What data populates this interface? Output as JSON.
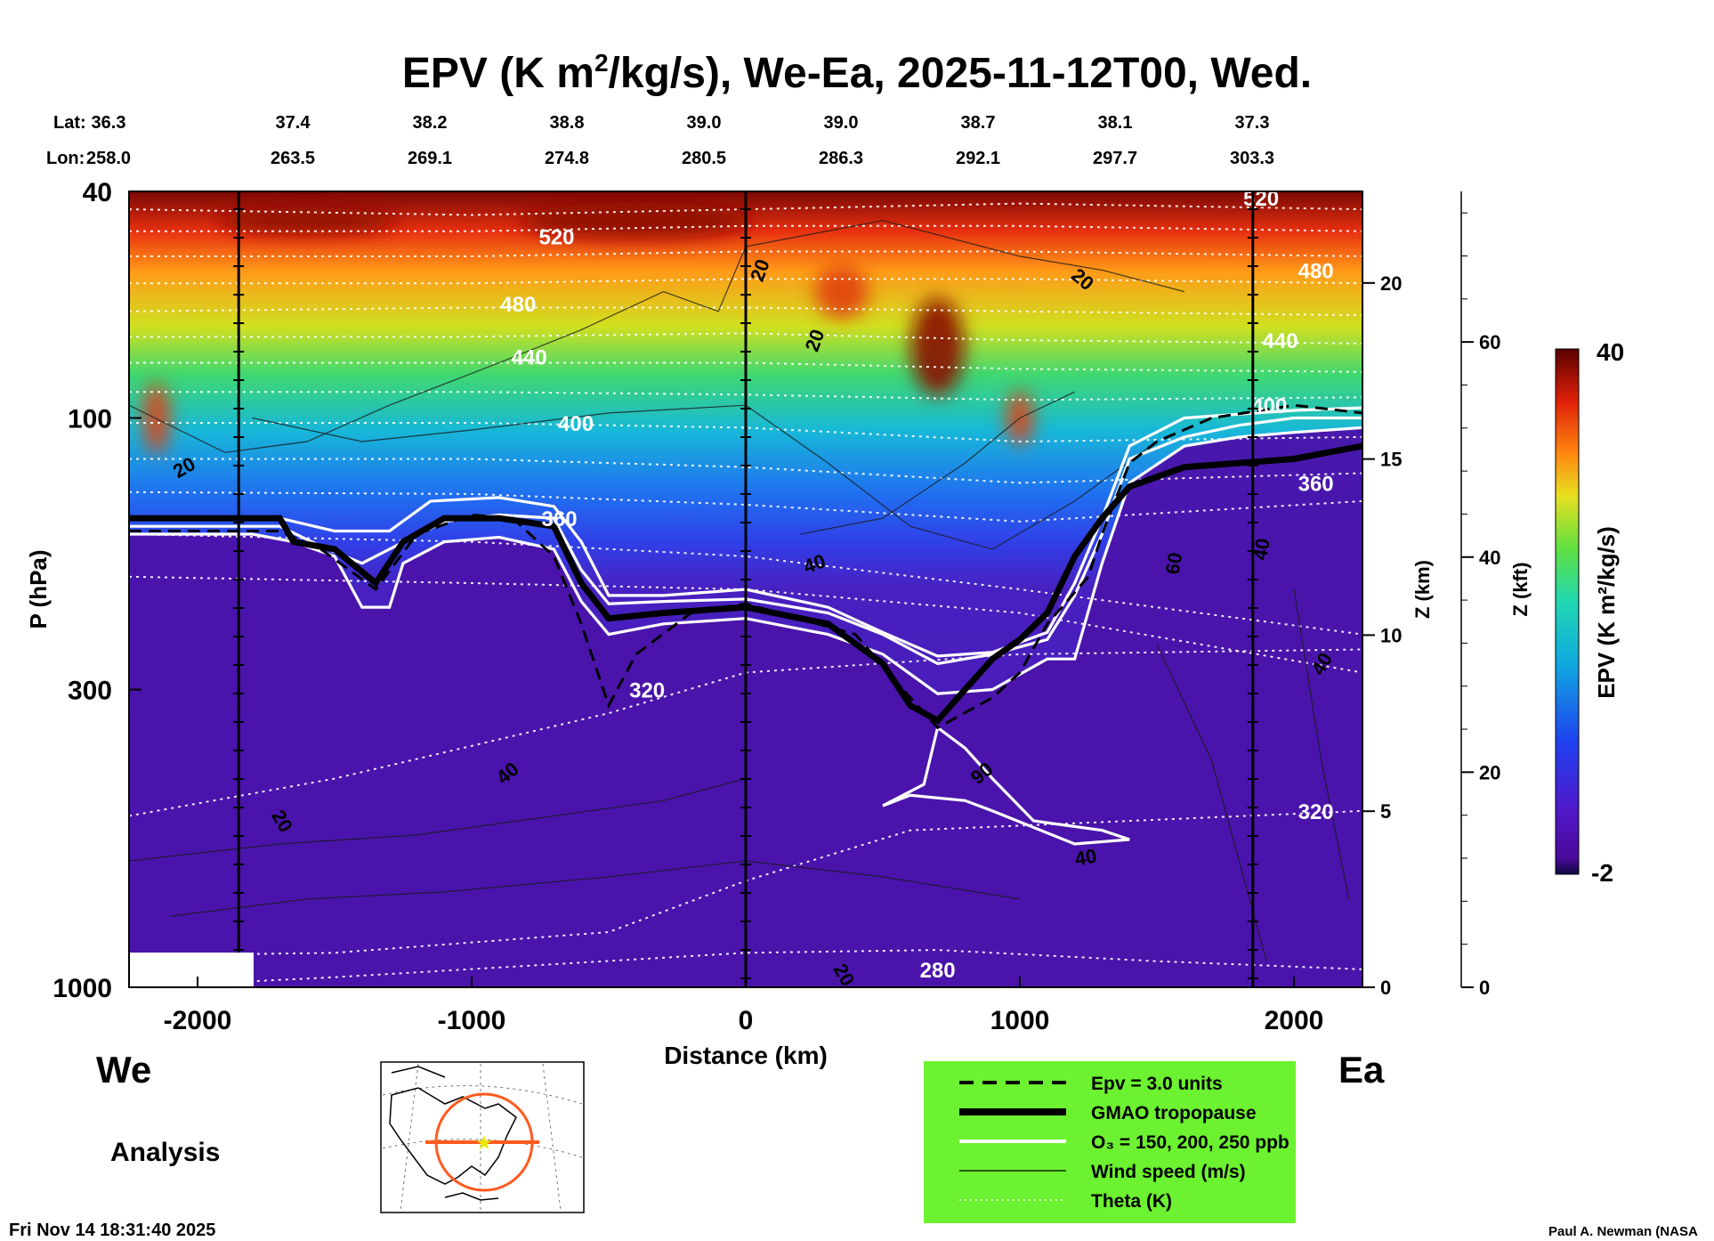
{
  "chart_data": {
    "type": "heatmap",
    "title_parts": {
      "a": "EPV (K m",
      "sup": "2",
      "b": "/kg/s), We-Ea, 2025-11-12T00, Wed."
    },
    "lat_label": "Lat:",
    "lon_label": "Lon:",
    "positions": [
      {
        "lat": "36.3",
        "lon": "258.0",
        "km": -2200
      },
      {
        "lat": "37.4",
        "lon": "263.5",
        "km": -1750
      },
      {
        "lat": "38.2",
        "lon": "269.1",
        "km": -1250
      },
      {
        "lat": "38.8",
        "lon": "274.8",
        "km": -750
      },
      {
        "lat": "39.0",
        "lon": "280.5",
        "km": -250
      },
      {
        "lat": "39.0",
        "lon": "286.3",
        "km": 250
      },
      {
        "lat": "38.7",
        "lon": "292.1",
        "km": 750
      },
      {
        "lat": "38.1",
        "lon": "297.7",
        "km": 1250
      },
      {
        "lat": "37.3",
        "lon": "303.3",
        "km": 1750
      }
    ],
    "x_range": [
      -2250,
      2250
    ],
    "x_ticks": [
      -2000,
      -1000,
      0,
      1000,
      2000
    ],
    "xlabel": "Distance (km)",
    "y_scale": "log",
    "y_range": [
      1000,
      40
    ],
    "y_ticks": [
      40,
      100,
      300,
      1000
    ],
    "ylabel": "P (hPa)",
    "z_km_ticks": [
      0,
      5,
      10,
      15,
      20
    ],
    "z_km_label": "Z (km)",
    "z_kft_ticks": [
      0,
      20,
      40,
      60
    ],
    "z_kft_label": "Z (kft)",
    "colorbar": {
      "label": "EPV (K m²/kg/s)",
      "min": -2,
      "max": 40
    },
    "theta_labels": [
      {
        "text": "520",
        "km": -690,
        "p": 48
      },
      {
        "text": "480",
        "km": -830,
        "p": 63
      },
      {
        "text": "440",
        "km": -790,
        "p": 78
      },
      {
        "text": "400",
        "km": -620,
        "p": 102
      },
      {
        "text": "360",
        "km": -680,
        "p": 150
      },
      {
        "text": "320",
        "km": -360,
        "p": 300
      },
      {
        "text": "280",
        "km": 700,
        "p": 930
      },
      {
        "text": "520",
        "km": 1880,
        "p": 41
      },
      {
        "text": "480",
        "km": 2080,
        "p": 55
      },
      {
        "text": "440",
        "km": 1950,
        "p": 73
      },
      {
        "text": "400",
        "km": 1910,
        "p": 95
      },
      {
        "text": "360",
        "km": 2080,
        "p": 130
      },
      {
        "text": "320",
        "km": 2080,
        "p": 490
      }
    ],
    "wind_labels": [
      {
        "text": "20",
        "km": -2050,
        "p": 122,
        "rot": -30
      },
      {
        "text": "20",
        "km": 50,
        "p": 55,
        "rot": -70
      },
      {
        "text": "20",
        "km": 250,
        "p": 73,
        "rot": -70
      },
      {
        "text": "20",
        "km": 1230,
        "p": 57,
        "rot": 40
      },
      {
        "text": "40",
        "km": 250,
        "p": 180,
        "rot": -20
      },
      {
        "text": "60",
        "km": 1560,
        "p": 180,
        "rot": -80
      },
      {
        "text": "40",
        "km": 1880,
        "p": 170,
        "rot": -80
      },
      {
        "text": "40",
        "km": 2100,
        "p": 270,
        "rot": -60
      },
      {
        "text": "40",
        "km": -870,
        "p": 420,
        "rot": -40
      },
      {
        "text": "20",
        "km": -1690,
        "p": 510,
        "rot": 60
      },
      {
        "text": "90",
        "km": 860,
        "p": 420,
        "rot": -40
      },
      {
        "text": "40",
        "km": 1240,
        "p": 590,
        "rot": -10
      },
      {
        "text": "20",
        "km": 360,
        "p": 950,
        "rot": 60
      }
    ],
    "legend": [
      {
        "text": "Epv = 3.0 units",
        "style": "dashed"
      },
      {
        "text": "GMAO tropopause",
        "style": "thick"
      },
      {
        "text": "O₃ = 150, 200, 250 ppb",
        "style": "white"
      },
      {
        "text": "Wind speed (m/s)",
        "style": "thin"
      },
      {
        "text": "Theta (K)",
        "style": "dotted"
      }
    ],
    "tropopause": [
      [
        -2250,
        150
      ],
      [
        -1700,
        150
      ],
      [
        -1650,
        165
      ],
      [
        -1500,
        170
      ],
      [
        -1350,
        195
      ],
      [
        -1250,
        165
      ],
      [
        -1100,
        150
      ],
      [
        -900,
        150
      ],
      [
        -700,
        155
      ],
      [
        -600,
        195
      ],
      [
        -500,
        225
      ],
      [
        -300,
        220
      ],
      [
        0,
        215
      ],
      [
        300,
        230
      ],
      [
        500,
        270
      ],
      [
        600,
        320
      ],
      [
        700,
        340
      ],
      [
        800,
        300
      ],
      [
        900,
        265
      ],
      [
        1000,
        245
      ],
      [
        1100,
        220
      ],
      [
        1200,
        175
      ],
      [
        1300,
        150
      ],
      [
        1400,
        132
      ],
      [
        1600,
        122
      ],
      [
        1800,
        120
      ],
      [
        2000,
        118
      ],
      [
        2250,
        112
      ]
    ],
    "epv_dashed": [
      [
        -2250,
        158
      ],
      [
        -1700,
        158
      ],
      [
        -1550,
        170
      ],
      [
        -1350,
        200
      ],
      [
        -1200,
        160
      ],
      [
        -1000,
        148
      ],
      [
        -850,
        150
      ],
      [
        -700,
        175
      ],
      [
        -600,
        230
      ],
      [
        -500,
        320
      ],
      [
        -400,
        260
      ],
      [
        -200,
        220
      ],
      [
        0,
        212
      ],
      [
        400,
        240
      ],
      [
        600,
        310
      ],
      [
        700,
        350
      ],
      [
        900,
        310
      ],
      [
        1000,
        280
      ],
      [
        1100,
        230
      ],
      [
        1250,
        190
      ],
      [
        1300,
        160
      ],
      [
        1400,
        120
      ],
      [
        1500,
        110
      ],
      [
        1700,
        100
      ],
      [
        2000,
        95
      ],
      [
        2250,
        98
      ]
    ],
    "ozone": [
      [
        [
          -2250,
          160
        ],
        [
          -1800,
          160
        ],
        [
          -1650,
          165
        ],
        [
          -1500,
          175
        ],
        [
          -1400,
          215
        ],
        [
          -1300,
          215
        ],
        [
          -1250,
          180
        ],
        [
          -1100,
          165
        ],
        [
          -900,
          162
        ],
        [
          -700,
          170
        ],
        [
          -600,
          210
        ],
        [
          -500,
          240
        ],
        [
          -300,
          230
        ],
        [
          0,
          225
        ],
        [
          300,
          240
        ],
        [
          500,
          260
        ],
        [
          700,
          305
        ],
        [
          900,
          300
        ],
        [
          1100,
          265
        ],
        [
          1200,
          265
        ],
        [
          1300,
          180
        ],
        [
          1400,
          130
        ],
        [
          1600,
          112
        ],
        [
          1800,
          108
        ],
        [
          2000,
          106
        ],
        [
          2250,
          104
        ]
      ],
      [
        [
          -2250,
          155
        ],
        [
          -1700,
          155
        ],
        [
          -1550,
          168
        ],
        [
          -1400,
          180
        ],
        [
          -1300,
          170
        ],
        [
          -1100,
          152
        ],
        [
          -900,
          148
        ],
        [
          -700,
          150
        ],
        [
          -600,
          185
        ],
        [
          -500,
          212
        ],
        [
          -300,
          210
        ],
        [
          0,
          208
        ],
        [
          300,
          220
        ],
        [
          500,
          240
        ],
        [
          700,
          270
        ],
        [
          900,
          260
        ],
        [
          1100,
          245
        ],
        [
          1200,
          205
        ],
        [
          1300,
          160
        ],
        [
          1400,
          118
        ],
        [
          1600,
          108
        ],
        [
          1800,
          103
        ],
        [
          2000,
          100
        ],
        [
          2250,
          100
        ]
      ],
      [
        [
          -2250,
          150
        ],
        [
          -1700,
          150
        ],
        [
          -1500,
          158
        ],
        [
          -1300,
          158
        ],
        [
          -1150,
          140
        ],
        [
          -900,
          138
        ],
        [
          -700,
          143
        ],
        [
          -600,
          165
        ],
        [
          -500,
          205
        ],
        [
          -300,
          205
        ],
        [
          0,
          200
        ],
        [
          300,
          215
        ],
        [
          500,
          238
        ],
        [
          700,
          262
        ],
        [
          900,
          258
        ],
        [
          1100,
          238
        ],
        [
          1200,
          195
        ],
        [
          1300,
          150
        ],
        [
          1400,
          112
        ],
        [
          1600,
          100
        ],
        [
          2000,
          97
        ],
        [
          2250,
          96
        ]
      ]
    ],
    "ozone_fold": [
      [
        500,
        480
      ],
      [
        650,
        440
      ],
      [
        700,
        350
      ],
      [
        800,
        380
      ],
      [
        900,
        430
      ],
      [
        1050,
        510
      ],
      [
        1300,
        530
      ],
      [
        1400,
        550
      ],
      [
        1200,
        560
      ],
      [
        900,
        490
      ],
      [
        800,
        470
      ],
      [
        600,
        460
      ]
    ],
    "theta_lines": [
      [
        [
          -2250,
          43
        ],
        [
          -1000,
          44
        ],
        [
          0,
          43
        ],
        [
          1000,
          42
        ],
        [
          2250,
          43
        ]
      ],
      [
        [
          -2250,
          47
        ],
        [
          -1000,
          47
        ],
        [
          0,
          46
        ],
        [
          1000,
          46
        ],
        [
          2250,
          47
        ]
      ],
      [
        [
          -2250,
          52
        ],
        [
          -1000,
          52
        ],
        [
          0,
          51
        ],
        [
          1000,
          51
        ],
        [
          2250,
          52
        ]
      ],
      [
        [
          -2250,
          58
        ],
        [
          -1000,
          58
        ],
        [
          0,
          57
        ],
        [
          1000,
          57
        ],
        [
          2250,
          58
        ]
      ],
      [
        [
          -2250,
          65
        ],
        [
          -1000,
          64
        ],
        [
          0,
          64
        ],
        [
          1000,
          65
        ],
        [
          2250,
          66
        ]
      ],
      [
        [
          -2250,
          72
        ],
        [
          -1000,
          72
        ],
        [
          0,
          71
        ],
        [
          1000,
          73
        ],
        [
          2250,
          74
        ]
      ],
      [
        [
          -2250,
          80
        ],
        [
          -1000,
          80
        ],
        [
          0,
          80
        ],
        [
          1000,
          82
        ],
        [
          2250,
          83
        ]
      ],
      [
        [
          -2250,
          90
        ],
        [
          -1000,
          90
        ],
        [
          0,
          91
        ],
        [
          1000,
          93
        ],
        [
          2250,
          92
        ]
      ],
      [
        [
          -2250,
          102
        ],
        [
          -1000,
          102
        ],
        [
          0,
          104
        ],
        [
          1000,
          110
        ],
        [
          2250,
          108
        ]
      ],
      [
        [
          -2250,
          118
        ],
        [
          -1000,
          118
        ],
        [
          0,
          122
        ],
        [
          1000,
          130
        ],
        [
          2250,
          125
        ]
      ],
      [
        [
          -2250,
          135
        ],
        [
          -1000,
          136
        ],
        [
          0,
          142
        ],
        [
          1000,
          152
        ],
        [
          2250,
          140
        ]
      ],
      [
        [
          -2250,
          160
        ],
        [
          -1000,
          165
        ],
        [
          0,
          175
        ],
        [
          1000,
          200
        ],
        [
          2250,
          240
        ]
      ],
      [
        [
          -2250,
          190
        ],
        [
          -1000,
          195
        ],
        [
          0,
          200
        ],
        [
          1000,
          220
        ],
        [
          2250,
          280
        ]
      ],
      [
        [
          -2250,
          500
        ],
        [
          -1500,
          430
        ],
        [
          -500,
          330
        ],
        [
          0,
          280
        ],
        [
          1000,
          260
        ],
        [
          2250,
          255
        ]
      ],
      [
        [
          -2250,
          880
        ],
        [
          -1500,
          870
        ],
        [
          -500,
          800
        ],
        [
          0,
          650
        ],
        [
          600,
          530
        ],
        [
          1000,
          520
        ],
        [
          2250,
          490
        ]
      ],
      [
        [
          -2250,
          1000
        ],
        [
          -1500,
          960
        ],
        [
          0,
          870
        ],
        [
          700,
          860
        ],
        [
          1500,
          900
        ],
        [
          2250,
          930
        ]
      ]
    ],
    "wind_lines": [
      [
        [
          -2250,
          95
        ],
        [
          -1900,
          115
        ],
        [
          -1600,
          110
        ],
        [
          -1300,
          95
        ],
        [
          -900,
          80
        ],
        [
          -600,
          70
        ],
        [
          -300,
          60
        ],
        [
          -100,
          65
        ],
        [
          0,
          50
        ],
        [
          500,
          45
        ],
        [
          1000,
          52
        ],
        [
          1300,
          55
        ],
        [
          1600,
          60
        ]
      ],
      [
        [
          -1800,
          100
        ],
        [
          -1400,
          110
        ],
        [
          -1000,
          105
        ],
        [
          -500,
          98
        ],
        [
          0,
          95
        ],
        [
          300,
          120
        ],
        [
          600,
          155
        ],
        [
          900,
          170
        ],
        [
          1200,
          140
        ],
        [
          1500,
          110
        ]
      ],
      [
        [
          200,
          160
        ],
        [
          500,
          150
        ],
        [
          800,
          120
        ],
        [
          1000,
          100
        ],
        [
          1200,
          90
        ]
      ],
      [
        [
          -2250,
          600
        ],
        [
          -1700,
          560
        ],
        [
          -1200,
          540
        ],
        [
          -700,
          500
        ],
        [
          -300,
          470
        ],
        [
          0,
          430
        ]
      ],
      [
        [
          -2100,
          750
        ],
        [
          -1600,
          700
        ],
        [
          -1100,
          680
        ],
        [
          -500,
          640
        ],
        [
          0,
          600
        ],
        [
          500,
          640
        ],
        [
          1000,
          700
        ]
      ],
      [
        [
          1500,
          250
        ],
        [
          1700,
          400
        ],
        [
          1800,
          600
        ],
        [
          1900,
          900
        ]
      ],
      [
        [
          2000,
          200
        ],
        [
          2100,
          400
        ],
        [
          2200,
          700
        ]
      ]
    ],
    "epv_blobs": [
      {
        "km": -2150,
        "p": 100,
        "v": 30,
        "w": 30,
        "h": 80
      },
      {
        "km": 1000,
        "p": 100,
        "v": 30,
        "w": 30,
        "h": 60
      },
      {
        "km": 700,
        "p": 75,
        "v": 34,
        "w": 60,
        "h": 110
      },
      {
        "km": 350,
        "p": 60,
        "v": 30,
        "w": 60,
        "h": 60
      },
      {
        "km": -1600,
        "p": 45,
        "v": 34,
        "w": 200,
        "h": 30
      },
      {
        "km": -400,
        "p": 45,
        "v": 36,
        "w": 260,
        "h": 40
      }
    ],
    "analysis_label": "Analysis",
    "we_label": "We",
    "ea_label": "Ea",
    "map_inset": "cross-section-location-map",
    "timestamp": "Fri Nov 14 18:31:40 2025",
    "credit": "Paul A. Newman (NASA"
  }
}
